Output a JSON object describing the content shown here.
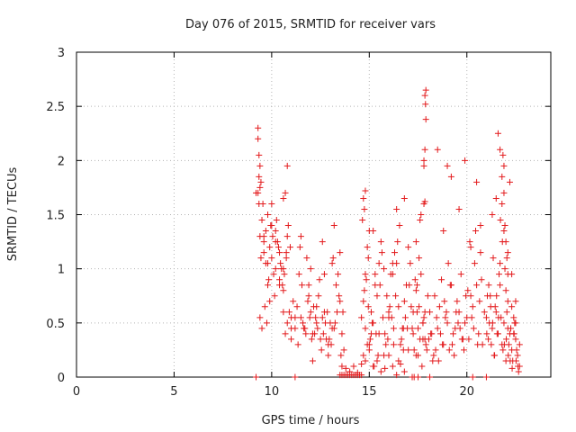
{
  "chart_data": {
    "type": "scatter",
    "title": "Day 076 of 2015, SRMTID for receiver vars",
    "xlabel": "GPS time / hours",
    "ylabel": "SRMTID / TECUs",
    "xlim": [
      0,
      24.3
    ],
    "ylim": [
      0,
      3
    ],
    "x_ticks": [
      0,
      5,
      10,
      15,
      20
    ],
    "x_tick_labels": [
      "0",
      "5",
      "10",
      "15",
      "20"
    ],
    "y_ticks": [
      0,
      0.5,
      1,
      1.5,
      2,
      2.5,
      3
    ],
    "y_tick_labels": [
      "0",
      "0.5",
      "1",
      "1.5",
      "2",
      "2.5",
      "3"
    ],
    "grid": true,
    "marker": "+",
    "marker_color": "#e31a1c",
    "series": [
      {
        "name": "SRMTID",
        "x": [
          9.2,
          9.3,
          9.4,
          9.5,
          9.6,
          9.7,
          9.8,
          9.9,
          10.0,
          10.1,
          10.2,
          10.3,
          10.4,
          10.5,
          10.6,
          10.7,
          10.8,
          10.9,
          11.0,
          11.1,
          11.2,
          9.35,
          9.45,
          9.55,
          9.65,
          9.75,
          9.85,
          9.95,
          10.05,
          10.15,
          10.25,
          10.35,
          10.45,
          10.55,
          10.65,
          10.75,
          10.85,
          10.95,
          9.3,
          9.35,
          9.4,
          9.5,
          9.6,
          9.7,
          9.8,
          9.9,
          10.0,
          10.2,
          10.4,
          10.6,
          10.8,
          11.0,
          9.4,
          9.6,
          9.8,
          10.0,
          10.2,
          10.4,
          10.6,
          10.8,
          11.0,
          11.2,
          9.3,
          9.35,
          9.4,
          9.45,
          10.6,
          10.7,
          10.75,
          11.3,
          11.5,
          11.7,
          11.9,
          12.1,
          12.3,
          12.5,
          12.7,
          12.9,
          13.1,
          13.3,
          13.5,
          13.7,
          11.4,
          11.6,
          11.8,
          12.0,
          12.2,
          12.4,
          12.6,
          12.8,
          13.0,
          13.2,
          13.4,
          13.6,
          11.35,
          11.55,
          11.75,
          11.95,
          12.15,
          12.35,
          12.55,
          12.75,
          12.95,
          13.15,
          13.35,
          13.55,
          11.45,
          11.65,
          11.85,
          12.05,
          12.25,
          12.45,
          12.65,
          12.85,
          13.05,
          13.25,
          13.45,
          13.65,
          11.5,
          11.9,
          12.3,
          12.7,
          13.1,
          13.5,
          12.0,
          12.6,
          13.2,
          12.1,
          12.9,
          13.6,
          13.8,
          14.0,
          14.2,
          14.4,
          14.6,
          14.8,
          15.0,
          15.2,
          15.4,
          15.6,
          15.8,
          16.0,
          16.2,
          16.4,
          16.6,
          16.8,
          14.6,
          14.7,
          14.8,
          14.9,
          15.0,
          15.1,
          15.3,
          15.5,
          15.7,
          15.9,
          16.1,
          16.3,
          16.5,
          16.7,
          16.9,
          17.1,
          17.3,
          14.65,
          14.75,
          14.85,
          14.95,
          15.05,
          15.2,
          15.4,
          15.6,
          15.8,
          16.0,
          16.2,
          16.4,
          16.6,
          16.8,
          17.0,
          17.2,
          17.4,
          14.7,
          14.9,
          15.1,
          15.35,
          15.55,
          15.75,
          15.95,
          16.15,
          16.35,
          16.55,
          16.75,
          16.95,
          17.15,
          17.35,
          17.55,
          17.75,
          14.75,
          14.95,
          15.15,
          15.45,
          15.65,
          15.85,
          16.05,
          16.25,
          16.45,
          16.65,
          16.85,
          17.05,
          17.25,
          17.45,
          17.65,
          17.85,
          14.8,
          15.0,
          15.25,
          15.5,
          15.75,
          16.0,
          16.25,
          16.5,
          16.75,
          17.0,
          17.25,
          17.5,
          17.75,
          14.7,
          14.8,
          15.2,
          15.3,
          16.2,
          16.4,
          16.8,
          17.4,
          17.6,
          17.8,
          17.4,
          17.6,
          17.8,
          18.0,
          18.2,
          18.4,
          18.6,
          18.8,
          19.0,
          19.2,
          19.4,
          19.6,
          19.8,
          20.0,
          20.2,
          20.4,
          20.6,
          20.8,
          17.5,
          17.7,
          17.9,
          18.1,
          18.3,
          18.5,
          18.7,
          18.9,
          19.1,
          19.3,
          19.5,
          19.7,
          19.9,
          20.1,
          20.3,
          20.5,
          20.7,
          20.9,
          17.55,
          17.75,
          17.95,
          18.15,
          18.35,
          18.55,
          18.75,
          18.95,
          19.15,
          19.35,
          19.55,
          19.75,
          19.95,
          20.15,
          20.35,
          20.55,
          20.75,
          17.45,
          17.65,
          17.85,
          18.05,
          18.25,
          18.45,
          18.65,
          18.85,
          19.05,
          19.25,
          19.45,
          19.65,
          19.85,
          20.05,
          20.25,
          20.45,
          20.65,
          17.8,
          17.85,
          17.9,
          17.85,
          17.88,
          17.9,
          17.8,
          17.85,
          18.5,
          18.8,
          19.0,
          19.2,
          19.6,
          19.9,
          20.2,
          20.5,
          20.7,
          21.0,
          21.1,
          21.2,
          21.3,
          21.4,
          21.5,
          21.6,
          21.7,
          21.8,
          21.9,
          22.0,
          22.1,
          22.2,
          22.3,
          22.4,
          22.5,
          22.6,
          22.7,
          21.05,
          21.15,
          21.25,
          21.35,
          21.45,
          21.55,
          21.65,
          21.75,
          21.85,
          21.95,
          22.05,
          22.15,
          22.25,
          22.35,
          22.45,
          22.55,
          22.65,
          21.02,
          21.22,
          21.42,
          21.62,
          21.82,
          22.02,
          22.22,
          22.42,
          22.62,
          21.12,
          21.32,
          21.52,
          21.72,
          21.92,
          22.12,
          22.32,
          22.52,
          21.3,
          21.5,
          21.7,
          21.9,
          22.1,
          22.3,
          22.5,
          22.7,
          21.8,
          21.9,
          22.0,
          22.1,
          21.6,
          21.7,
          21.8,
          21.85,
          21.9,
          21.95,
          22.0,
          22.05,
          22.1,
          22.2,
          22.3,
          22.4,
          22.5,
          13.5,
          13.6,
          13.7,
          13.8,
          13.9,
          14.0,
          14.1,
          14.2,
          14.3,
          14.4,
          14.5,
          14.6,
          9.2,
          11.2,
          17.2,
          17.3,
          17.5,
          18.1,
          20.3,
          21.0
        ],
        "y": [
          1.7,
          2.3,
          1.95,
          1.45,
          1.3,
          1.05,
          0.85,
          1.2,
          1.1,
          0.95,
          1.35,
          1.25,
          1.15,
          1.0,
          0.8,
          1.7,
          1.95,
          0.6,
          0.55,
          0.7,
          0.45,
          2.05,
          1.8,
          1.6,
          0.65,
          0.5,
          0.9,
          1.4,
          1.3,
          0.75,
          1.45,
          1.2,
          1.05,
          0.85,
          0.95,
          1.1,
          1.4,
          1.2,
          1.7,
          1.85,
          0.55,
          0.45,
          1.25,
          1.35,
          1.5,
          0.7,
          1.6,
          1.0,
          0.9,
          0.6,
          0.5,
          0.35,
          1.75,
          1.15,
          1.05,
          1.4,
          1.25,
          0.85,
          1.0,
          1.3,
          0.45,
          0.55,
          2.2,
          1.6,
          1.3,
          1.1,
          1.65,
          0.4,
          1.15,
          0.65,
          0.55,
          0.45,
          0.75,
          0.4,
          0.5,
          0.35,
          0.6,
          0.3,
          0.45,
          0.85,
          0.7,
          0.25,
          0.95,
          0.5,
          1.1,
          0.6,
          0.4,
          0.75,
          0.55,
          0.35,
          0.5,
          0.45,
          0.95,
          0.4,
          0.3,
          0.85,
          0.4,
          0.55,
          0.65,
          0.45,
          0.25,
          0.5,
          0.35,
          1.1,
          0.6,
          0.2,
          1.2,
          0.45,
          0.7,
          0.35,
          0.55,
          0.9,
          0.4,
          0.6,
          0.3,
          0.5,
          0.75,
          0.6,
          1.3,
          0.85,
          0.65,
          0.95,
          1.05,
          1.15,
          1.0,
          1.25,
          1.4,
          0.15,
          0.2,
          0.1,
          0.08,
          0.05,
          0.1,
          0.04,
          0.12,
          0.45,
          0.3,
          0.1,
          0.15,
          0.05,
          0.08,
          0.2,
          0.1,
          0.02,
          0.12,
          0.05,
          0.55,
          0.7,
          0.95,
          1.2,
          1.35,
          0.4,
          0.85,
          1.05,
          0.55,
          0.75,
          0.95,
          1.15,
          0.65,
          0.45,
          0.85,
          1.05,
          0.25,
          1.45,
          1.55,
          0.9,
          0.65,
          0.35,
          0.5,
          0.75,
          1.25,
          0.4,
          0.6,
          0.95,
          1.05,
          0.3,
          0.7,
          1.2,
          0.45,
          0.8,
          0.2,
          0.3,
          0.6,
          0.4,
          0.85,
          1.0,
          0.35,
          0.55,
          0.75,
          1.4,
          0.25,
          0.45,
          0.65,
          0.9,
          1.1,
          0.5,
          0.8,
          1.1,
          0.5,
          0.2,
          1.15,
          0.3,
          0.65,
          0.45,
          1.25,
          0.35,
          0.55,
          0.85,
          0.4,
          0.6,
          1.5,
          0.35,
          0.15,
          0.25,
          0.1,
          0.4,
          0.2,
          0.55,
          0.3,
          0.15,
          0.45,
          0.25,
          0.6,
          0.2,
          0.35,
          1.65,
          1.72,
          1.35,
          0.95,
          1.05,
          1.55,
          1.65,
          1.25,
          1.45,
          1.6,
          0.2,
          0.35,
          0.55,
          0.75,
          0.4,
          0.25,
          0.65,
          0.3,
          0.5,
          0.85,
          0.45,
          0.6,
          0.35,
          0.55,
          0.75,
          1.05,
          0.4,
          0.3,
          0.45,
          0.1,
          0.3,
          0.6,
          0.2,
          0.45,
          0.9,
          0.55,
          0.25,
          0.4,
          0.7,
          0.95,
          0.5,
          0.35,
          0.65,
          0.85,
          1.15,
          0.6,
          0.65,
          0.5,
          0.25,
          0.4,
          0.75,
          0.15,
          0.3,
          0.6,
          0.85,
          0.2,
          0.5,
          0.35,
          0.75,
          1.25,
          0.45,
          0.3,
          0.9,
          0.85,
          0.95,
          0.6,
          0.35,
          0.15,
          0.55,
          0.4,
          0.7,
          1.05,
          0.3,
          0.6,
          0.45,
          0.25,
          0.8,
          0.55,
          1.35,
          0.7,
          2.0,
          2.1,
          2.65,
          2.6,
          2.52,
          2.38,
          1.95,
          1.62,
          2.1,
          1.35,
          1.95,
          1.85,
          1.55,
          2.0,
          1.2,
          1.8,
          1.4,
          0.55,
          0.35,
          0.75,
          0.45,
          0.2,
          0.6,
          0.4,
          0.85,
          0.3,
          0.5,
          0.15,
          0.7,
          0.4,
          0.25,
          0.55,
          0.35,
          0.2,
          0.1,
          0.75,
          0.5,
          0.3,
          1.1,
          0.65,
          0.4,
          0.95,
          0.55,
          0.25,
          1.0,
          0.6,
          0.3,
          0.45,
          0.15,
          0.5,
          0.25,
          0.05,
          0.4,
          0.65,
          0.2,
          0.55,
          1.25,
          0.35,
          0.15,
          0.4,
          0.1,
          0.85,
          0.5,
          0.75,
          1.45,
          0.3,
          0.2,
          0.08,
          0.15,
          1.5,
          1.65,
          1.05,
          1.95,
          1.15,
          0.95,
          0.7,
          0.3,
          1.6,
          1.35,
          0.8,
          0.45,
          2.25,
          2.1,
          1.85,
          2.05,
          1.7,
          1.4,
          1.25,
          1.1,
          0.95,
          1.8,
          0.65,
          0.4,
          0.5,
          0.02,
          0.02,
          0.02,
          0.02,
          0.02,
          0.02,
          0.02,
          0.02,
          0.02,
          0.02,
          0.02,
          0.02,
          0.0,
          0.0,
          0.0,
          0.0,
          0.0,
          0.0,
          0.0,
          0.0
        ]
      }
    ]
  }
}
